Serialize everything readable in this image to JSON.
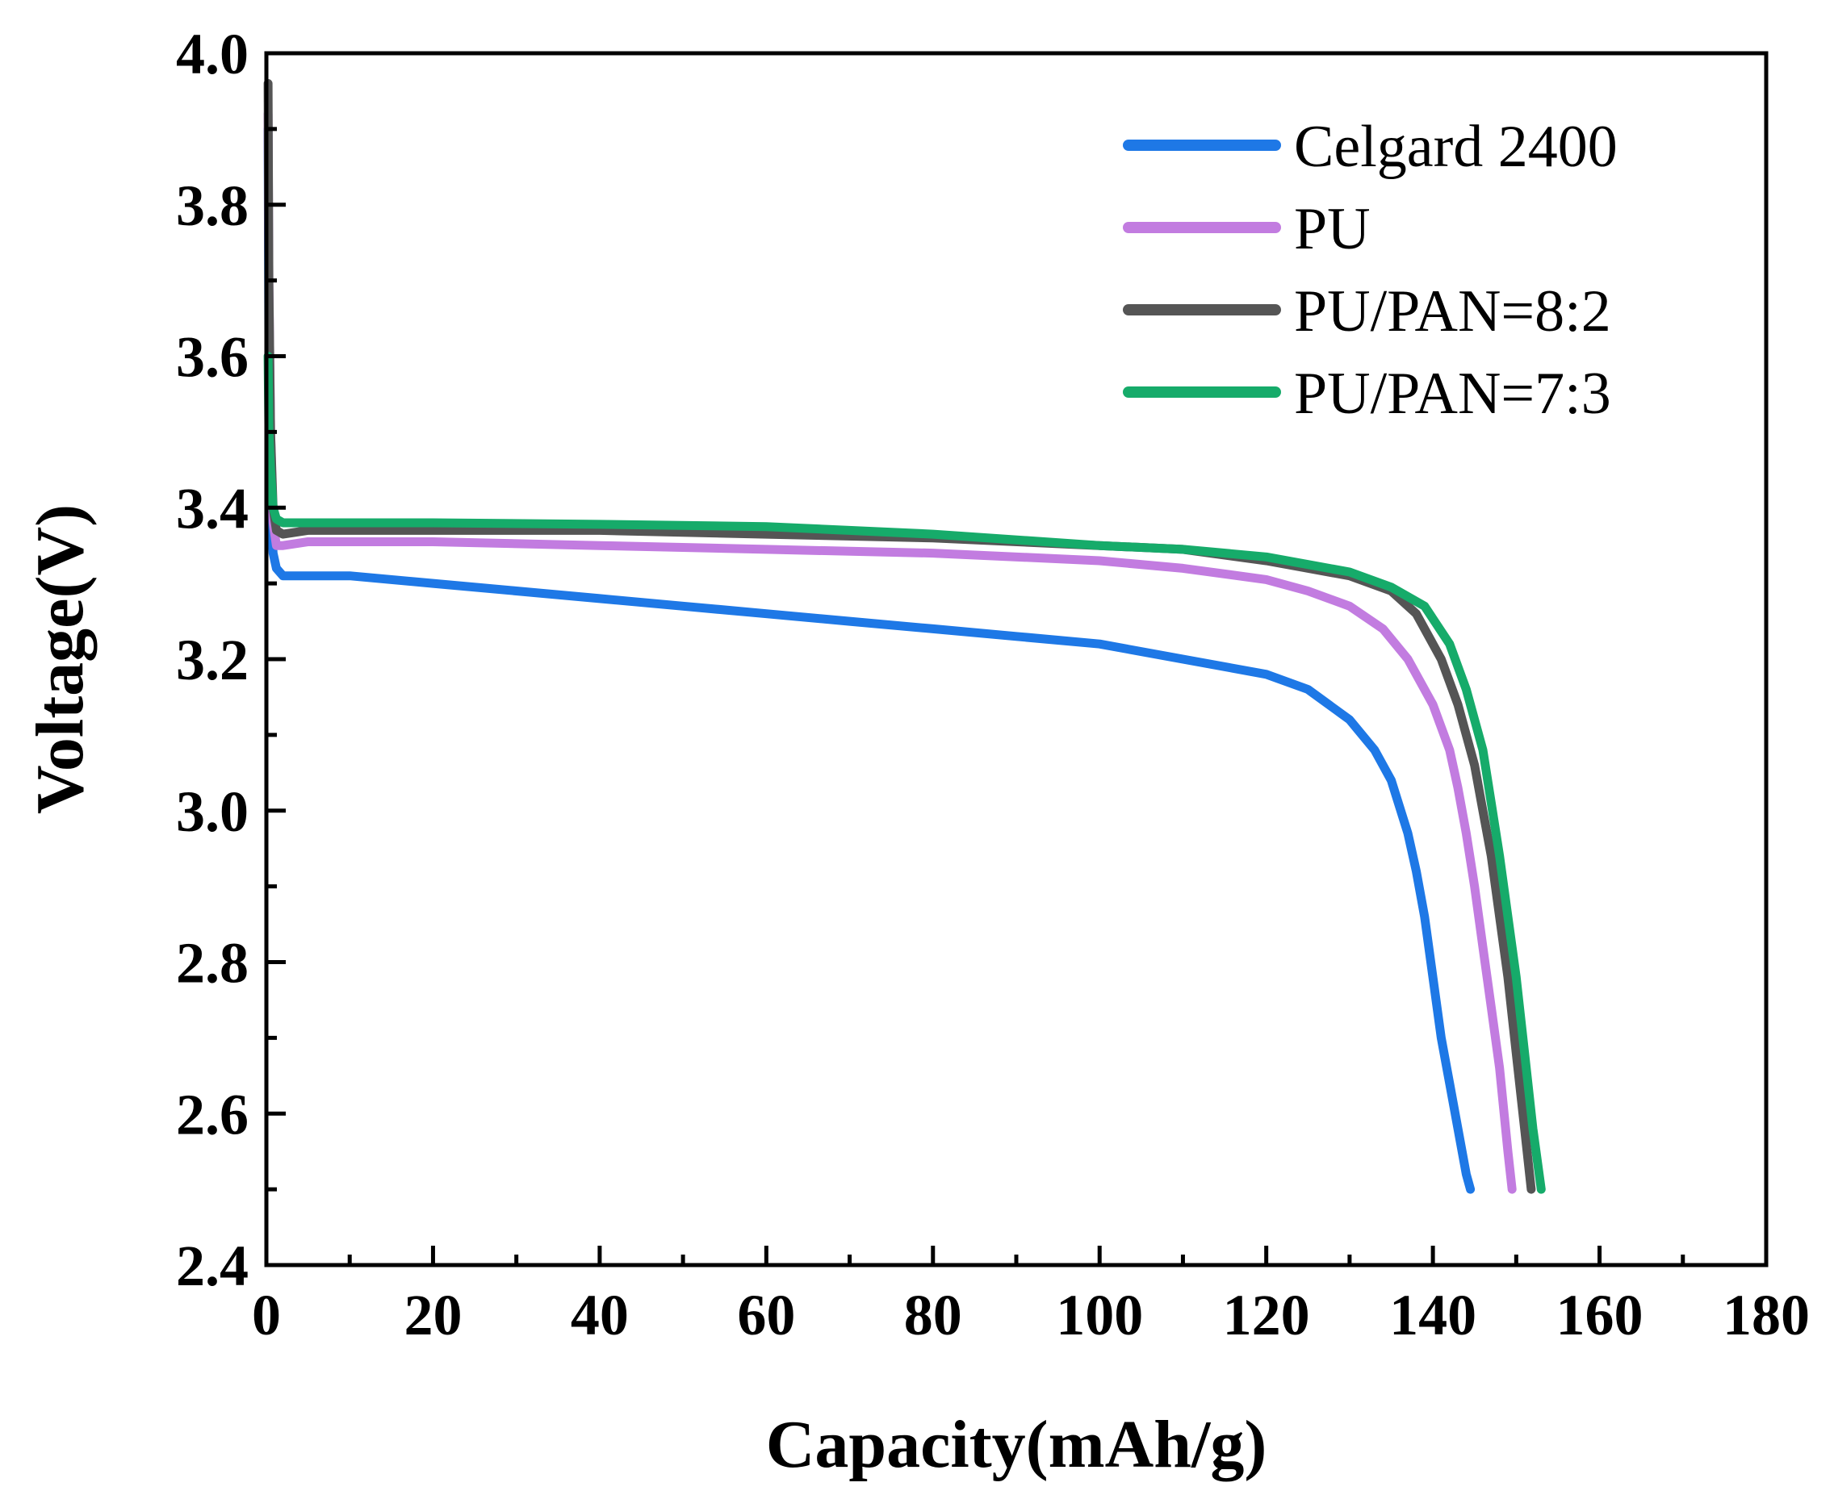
{
  "chart_data": {
    "type": "line",
    "title": "",
    "xlabel": "Capacity(mAh/g)",
    "ylabel": "Voltage(V)",
    "xlim": [
      0,
      180
    ],
    "ylim": [
      2.4,
      4.0
    ],
    "xticks": [
      0,
      20,
      40,
      60,
      80,
      100,
      120,
      140,
      160,
      180
    ],
    "xtick_labels": [
      "0",
      "20",
      "40",
      "60",
      "80",
      "100",
      "120",
      "140",
      "160",
      "180"
    ],
    "yticks": [
      2.4,
      2.6,
      2.8,
      3.0,
      3.2,
      3.4,
      3.6,
      3.8,
      4.0
    ],
    "ytick_labels": [
      "2.4",
      "2.6",
      "2.8",
      "3.0",
      "3.2",
      "3.4",
      "3.6",
      "3.8",
      "4.0"
    ],
    "grid": false,
    "legend_position": "top-right",
    "series": [
      {
        "name": "Celgard 2400",
        "color": "#1e78e6",
        "x": [
          0.2,
          0.3,
          0.5,
          0.8,
          1.2,
          2,
          5,
          10,
          20,
          30,
          40,
          50,
          60,
          70,
          80,
          90,
          100,
          110,
          120,
          125,
          130,
          133,
          135,
          137,
          138,
          139,
          140,
          141,
          142,
          143,
          144,
          144.5
        ],
        "y": [
          3.9,
          3.6,
          3.4,
          3.34,
          3.32,
          3.31,
          3.31,
          3.31,
          3.3,
          3.29,
          3.28,
          3.27,
          3.26,
          3.25,
          3.24,
          3.23,
          3.22,
          3.2,
          3.18,
          3.16,
          3.12,
          3.08,
          3.04,
          2.97,
          2.92,
          2.86,
          2.78,
          2.7,
          2.64,
          2.58,
          2.52,
          2.5
        ]
      },
      {
        "name": "PU",
        "color": "#c27ce0",
        "x": [
          0.2,
          0.3,
          0.5,
          0.8,
          1.2,
          2,
          5,
          10,
          20,
          40,
          60,
          80,
          100,
          110,
          120,
          125,
          130,
          134,
          137,
          140,
          142,
          143,
          144,
          145,
          146,
          147,
          148,
          149,
          149.5
        ],
        "y": [
          3.92,
          3.7,
          3.5,
          3.38,
          3.35,
          3.35,
          3.355,
          3.355,
          3.355,
          3.35,
          3.345,
          3.34,
          3.33,
          3.32,
          3.305,
          3.29,
          3.27,
          3.24,
          3.2,
          3.14,
          3.08,
          3.03,
          2.97,
          2.9,
          2.82,
          2.74,
          2.66,
          2.55,
          2.5
        ]
      },
      {
        "name": "PU/PAN=8:2",
        "color": "#555555",
        "x": [
          0.2,
          0.3,
          0.5,
          0.8,
          1.2,
          2,
          5,
          10,
          20,
          40,
          60,
          80,
          100,
          110,
          120,
          125,
          130,
          135,
          138,
          141,
          143,
          145,
          146,
          147,
          148,
          149,
          150,
          151,
          151.8
        ],
        "y": [
          3.96,
          3.7,
          3.5,
          3.4,
          3.37,
          3.365,
          3.37,
          3.37,
          3.37,
          3.37,
          3.365,
          3.36,
          3.35,
          3.345,
          3.33,
          3.32,
          3.31,
          3.29,
          3.26,
          3.2,
          3.14,
          3.06,
          3.0,
          2.94,
          2.86,
          2.78,
          2.68,
          2.58,
          2.5
        ]
      },
      {
        "name": "PU/PAN=7:3",
        "color": "#16ab6a",
        "x": [
          0.2,
          0.3,
          0.5,
          0.8,
          1.2,
          2,
          5,
          10,
          20,
          40,
          60,
          80,
          100,
          110,
          120,
          125,
          130,
          135,
          139,
          142,
          144,
          146,
          147,
          148,
          149,
          150,
          151,
          152,
          153
        ],
        "y": [
          3.6,
          3.5,
          3.45,
          3.4,
          3.385,
          3.38,
          3.38,
          3.38,
          3.38,
          3.378,
          3.375,
          3.365,
          3.35,
          3.345,
          3.335,
          3.325,
          3.315,
          3.295,
          3.27,
          3.22,
          3.16,
          3.08,
          3.01,
          2.94,
          2.86,
          2.78,
          2.68,
          2.58,
          2.5
        ]
      }
    ]
  }
}
